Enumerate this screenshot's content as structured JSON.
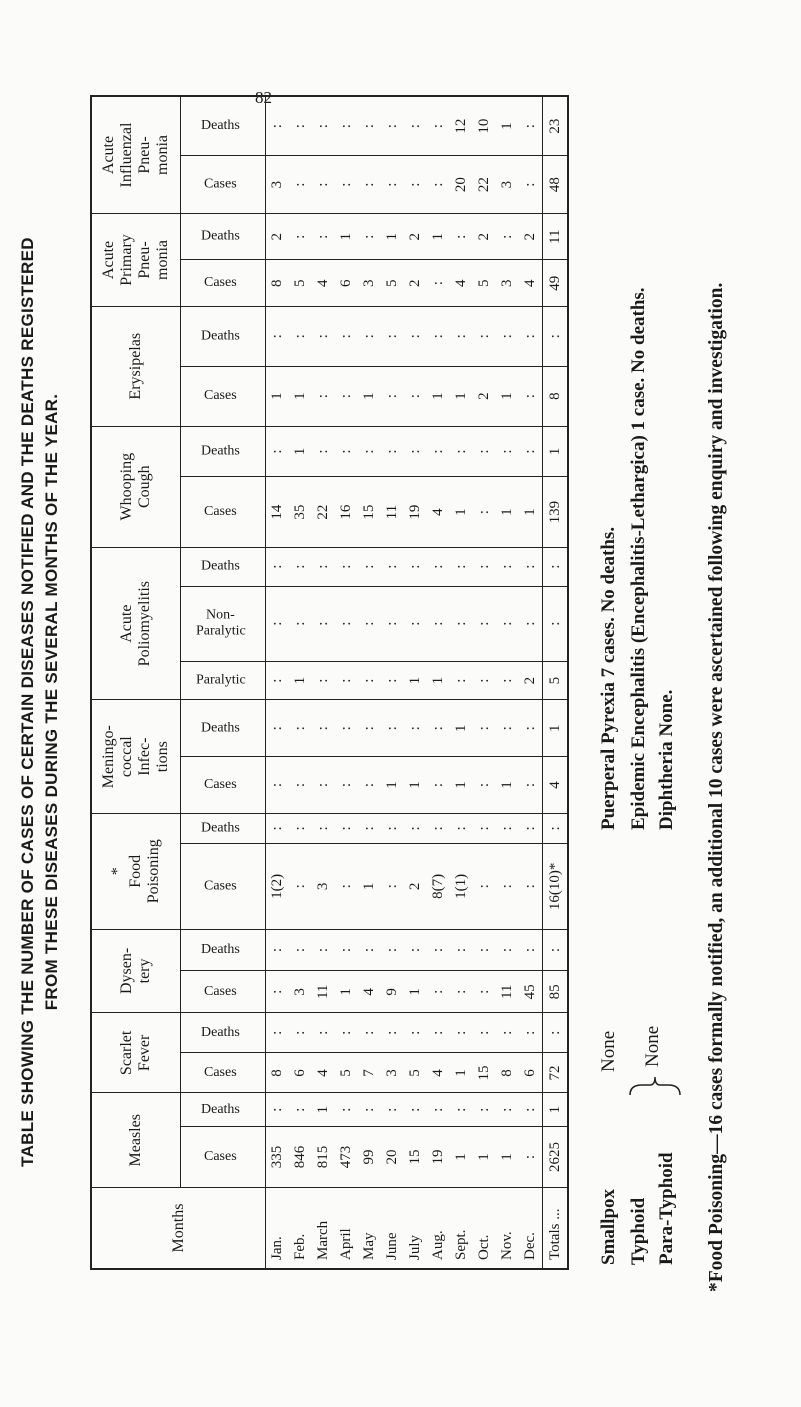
{
  "page_number": "82",
  "header": {
    "title": [
      "TABLE SHOWING THE NUMBER OF CASES OF CERTAIN DISEASES NOTIFIED AND THE DEATHS REGISTERED",
      "FROM THESE DISEASES DURING THE SEVERAL MONTHS OF THE YEAR."
    ]
  },
  "table": {
    "months_header": "Months",
    "groups": [
      {
        "name": "Measles",
        "span": 2
      },
      {
        "name": "Scarlet\nFever",
        "span": 2
      },
      {
        "name": "Dysen-\ntery",
        "span": 2
      },
      {
        "name": "*\nFood\nPoisoning",
        "span": 2
      },
      {
        "name": "Meningo-\ncoccal\nInfec-\ntions",
        "span": 2
      },
      {
        "name": "Acute\nPoliomyelitis",
        "span": 3
      },
      {
        "name": "Whooping\nCough",
        "span": 2
      },
      {
        "name": "Erysipelas",
        "span": 2
      },
      {
        "name": "Acute\nPrimary\nPneu-\nmonia",
        "span": 2
      },
      {
        "name": "Acute\nInfluenzal\nPneu-\nmonia",
        "span": 2
      }
    ],
    "subheaders": [
      "Cases",
      "Deaths",
      "Cases",
      "Deaths",
      "Cases",
      "Deaths",
      "Cases",
      "Deaths",
      "Cases",
      "Deaths",
      "Paralytic",
      "Non-\nParalytic",
      "Deaths",
      "Cases",
      "Deaths",
      "Cases",
      "Deaths",
      "Cases",
      "Deaths",
      "Cases",
      "Deaths"
    ],
    "rows": [
      [
        "Jan.",
        335,
        ":",
        8,
        ":",
        ":",
        ":",
        "1(2)",
        ":",
        ":",
        ":",
        ":",
        ":",
        ":",
        14,
        ":",
        1,
        ":",
        8,
        2,
        3,
        ":"
      ],
      [
        "Feb.",
        846,
        ":",
        6,
        ":",
        3,
        ":",
        ":",
        ":",
        ":",
        ":",
        1,
        ":",
        ":",
        35,
        1,
        1,
        ":",
        5,
        ":",
        ":",
        ":"
      ],
      [
        "March",
        815,
        1,
        4,
        ":",
        11,
        ":",
        3,
        ":",
        ":",
        ":",
        ":",
        ":",
        ":",
        22,
        ":",
        ":",
        ":",
        4,
        ":",
        ":",
        ":"
      ],
      [
        "April",
        473,
        ":",
        5,
        ":",
        1,
        ":",
        ":",
        ":",
        ":",
        ":",
        ":",
        ":",
        ":",
        16,
        ":",
        ":",
        ":",
        6,
        1,
        ":",
        ":"
      ],
      [
        "May",
        99,
        ":",
        7,
        ":",
        4,
        ":",
        1,
        ":",
        ":",
        ":",
        ":",
        ":",
        ":",
        15,
        ":",
        1,
        ":",
        3,
        ":",
        ":",
        ":"
      ],
      [
        "June",
        20,
        ":",
        3,
        ":",
        9,
        ":",
        ":",
        ":",
        1,
        ":",
        ":",
        ":",
        ":",
        11,
        ":",
        ":",
        ":",
        5,
        1,
        ":",
        ":"
      ],
      [
        "July",
        15,
        ":",
        5,
        ":",
        1,
        ":",
        2,
        ":",
        1,
        ":",
        1,
        ":",
        ":",
        19,
        ":",
        ":",
        ":",
        2,
        2,
        ":",
        ":"
      ],
      [
        "Aug.",
        19,
        ":",
        4,
        ":",
        ":",
        ":",
        "8(7)",
        ":",
        ":",
        ":",
        1,
        ":",
        ":",
        4,
        ":",
        1,
        ":",
        ":",
        1,
        ":",
        ":"
      ],
      [
        "Sept.",
        1,
        ":",
        1,
        ":",
        ":",
        ":",
        "1(1)",
        ":",
        1,
        1,
        ":",
        ":",
        ":",
        1,
        ":",
        1,
        ":",
        4,
        ":",
        20,
        12
      ],
      [
        "Oct.",
        1,
        ":",
        15,
        ":",
        ":",
        ":",
        ":",
        ":",
        ":",
        ":",
        ":",
        ":",
        ":",
        ":",
        ":",
        2,
        ":",
        5,
        2,
        22,
        10
      ],
      [
        "Nov.",
        1,
        ":",
        8,
        ":",
        11,
        ":",
        ":",
        ":",
        1,
        ":",
        ":",
        ":",
        ":",
        1,
        ":",
        1,
        ":",
        3,
        ":",
        3,
        1
      ],
      [
        "Dec.",
        ":",
        ":",
        6,
        ":",
        45,
        ":",
        ":",
        ":",
        ":",
        ":",
        2,
        ":",
        ":",
        1,
        ":",
        ":",
        ":",
        4,
        2,
        ":",
        ":"
      ]
    ],
    "totals": [
      "Totals ...",
      2625,
      1,
      72,
      ":",
      85,
      ":",
      "16(10)*",
      ":",
      4,
      1,
      5,
      ":",
      ":",
      139,
      1,
      8,
      ":",
      49,
      11,
      48,
      23
    ]
  },
  "notes": {
    "smallpox": "Smallpox",
    "smallpox_value": "None",
    "typhoid": "Typhoid",
    "paratyphoid": "Para-Typhoid",
    "typhoid_value": "None",
    "puerperal": "Puerperal Pyrexia 7 cases. No deaths.",
    "encephalitis": "Epidemic Encephalitis (Encephalitis-Lethargica) 1 case. No deaths.",
    "diphtheria": "Diphtheria None.",
    "footnote": "*Food Poisoning—16 cases formally notified, an additional 10 cases were ascertained following enquiry and investigation."
  }
}
